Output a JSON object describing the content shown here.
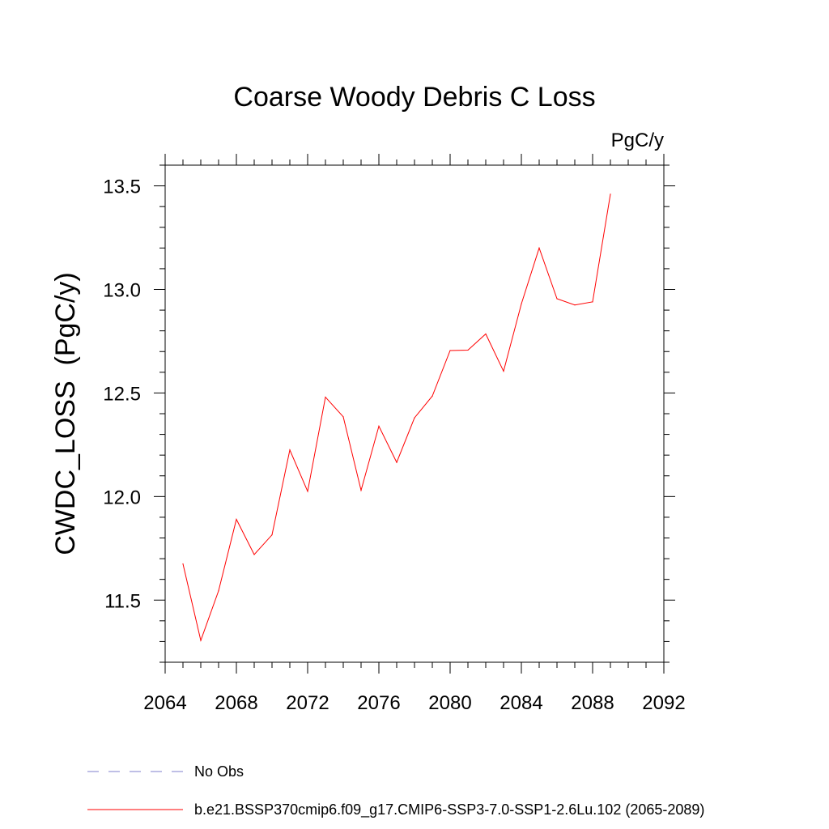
{
  "chart_data": {
    "type": "line",
    "title": "Coarse Woody Debris C Loss",
    "units": "PgC/y",
    "ylabel": "CWDC_LOSS  (PgC/y)",
    "xlabel": "",
    "xlim": [
      2064,
      2092
    ],
    "ylim": [
      11.2,
      13.6
    ],
    "x_ticks": [
      2064,
      2068,
      2072,
      2076,
      2080,
      2084,
      2088,
      2092
    ],
    "y_ticks": [
      11.5,
      12.0,
      12.5,
      13.0,
      13.5
    ],
    "y_tick_labels": [
      "11.5",
      "12.0",
      "12.5",
      "13.0",
      "13.5"
    ],
    "series": [
      {
        "name": "b.e21.BSSP370cmip6.f09_g17.CMIP6-SSP3-7.0-SSP1-2.6Lu.102 (2065-2089)",
        "color": "#ff0000",
        "x": [
          2065,
          2066,
          2067,
          2068,
          2069,
          2070,
          2071,
          2072,
          2073,
          2074,
          2075,
          2076,
          2077,
          2078,
          2079,
          2080,
          2081,
          2082,
          2083,
          2084,
          2085,
          2086,
          2087,
          2088,
          2089
        ],
        "values": [
          11.675,
          11.305,
          11.545,
          11.89,
          11.72,
          11.815,
          12.225,
          12.025,
          12.48,
          12.385,
          12.03,
          12.34,
          12.165,
          12.38,
          12.485,
          12.705,
          12.707,
          12.785,
          12.605,
          12.93,
          13.2,
          12.955,
          12.925,
          12.94,
          13.46
        ]
      }
    ],
    "legend": [
      {
        "label": "No Obs",
        "color": "#7f7fcc",
        "style": "dashed"
      },
      {
        "label": "b.e21.BSSP370cmip6.f09_g17.CMIP6-SSP3-7.0-SSP1-2.6Lu.102 (2065-2089)",
        "color": "#ff0000",
        "style": "solid"
      }
    ],
    "legend_position": "bottom-left",
    "grid": false
  }
}
